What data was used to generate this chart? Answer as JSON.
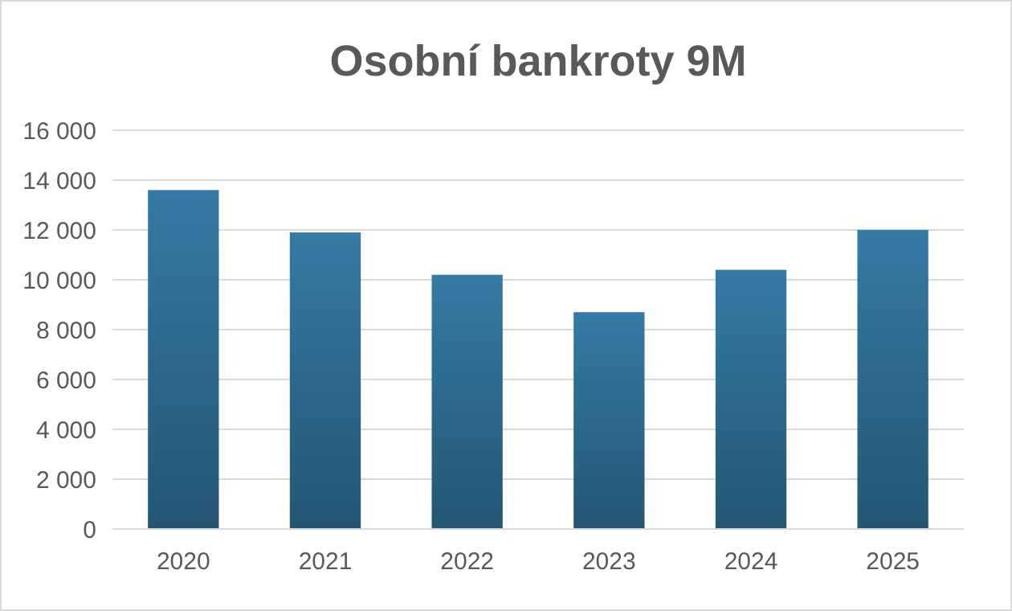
{
  "chart_data": {
    "type": "bar",
    "title": "Osobní bankroty 9M",
    "categories": [
      "2020",
      "2021",
      "2022",
      "2023",
      "2024",
      "2025"
    ],
    "values": [
      13600,
      11900,
      10200,
      8700,
      10400,
      12000
    ],
    "color": "#2a6385",
    "ylim": [
      0,
      16000
    ],
    "yticks": [
      {
        "value": 0,
        "label": "0"
      },
      {
        "value": 2000,
        "label": "2 000"
      },
      {
        "value": 4000,
        "label": "4 000"
      },
      {
        "value": 6000,
        "label": "6 000"
      },
      {
        "value": 8000,
        "label": "8 000"
      },
      {
        "value": 10000,
        "label": "10 000"
      },
      {
        "value": 12000,
        "label": "12 000"
      },
      {
        "value": 14000,
        "label": "14 000"
      },
      {
        "value": 16000,
        "label": "16 000"
      }
    ],
    "grid": "y"
  }
}
